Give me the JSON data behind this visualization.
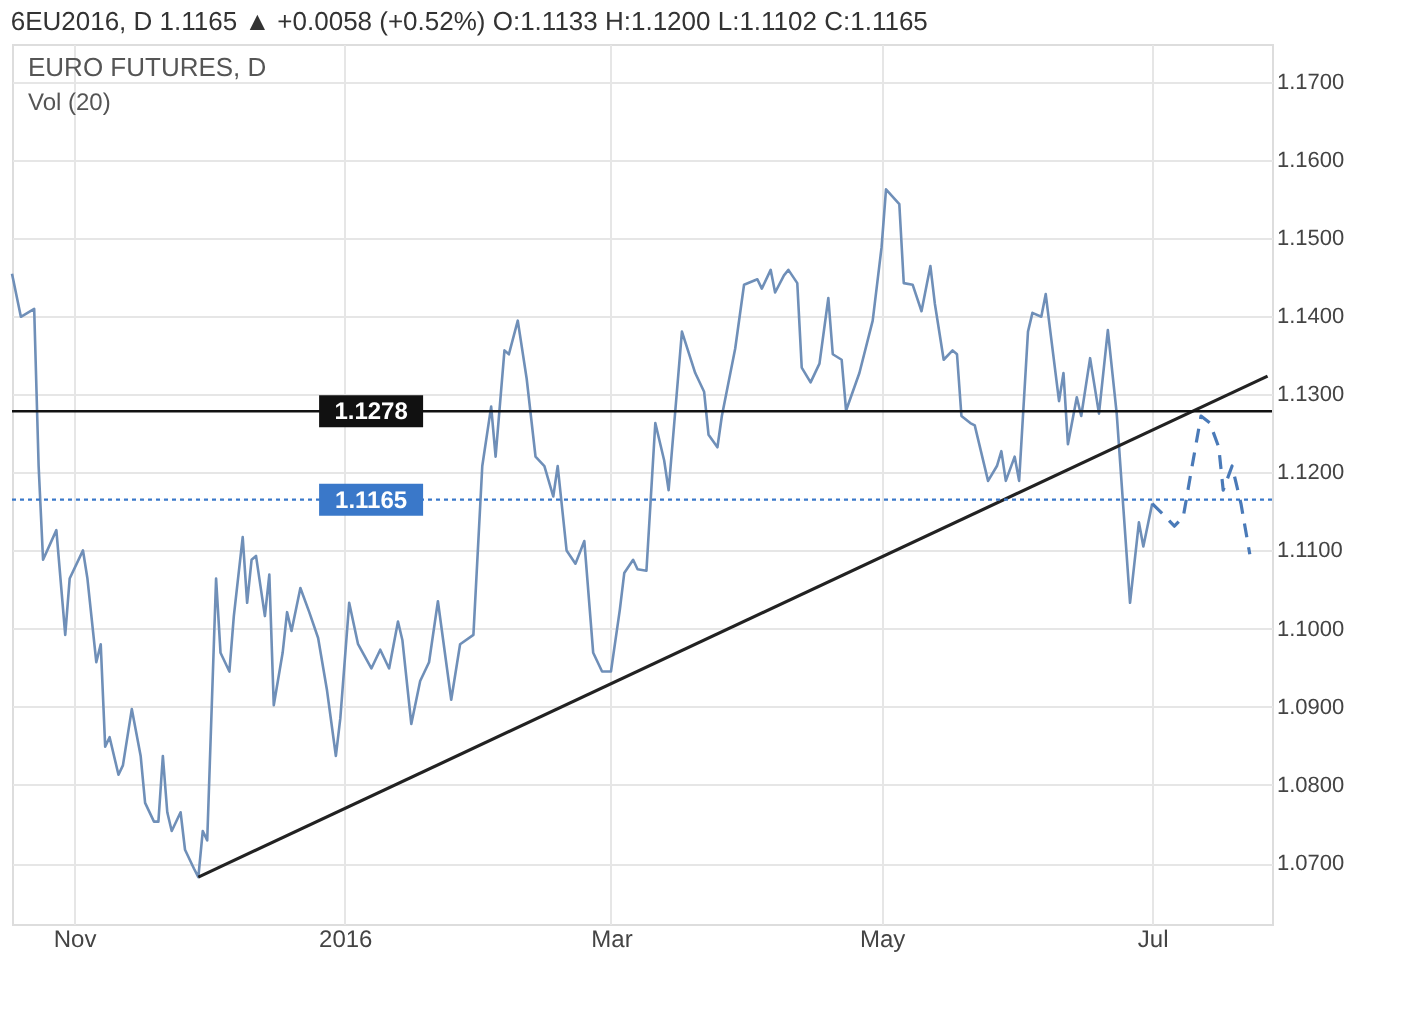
{
  "chart_data": {
    "type": "line",
    "title": "6EU2016, D  1.1165 ▲ +0.0058 (+0.52%)  O:1.1133  H:1.1200  L:1.1102  C:1.1165",
    "subtitle": "EURO FUTURES, D",
    "annotations": [
      "Vol (20)"
    ],
    "xlim": [
      "2015-10-18",
      "2016-07-28"
    ],
    "xticks": [
      {
        "value": "2015-11-01",
        "label": "Nov"
      },
      {
        "value": "2016-01-01",
        "label": "2016"
      },
      {
        "value": "2016-03-01",
        "label": "Mar"
      },
      {
        "value": "2016-05-01",
        "label": "May"
      },
      {
        "value": "2016-07-01",
        "label": "Jul"
      }
    ],
    "ylim": [
      1.0622,
      1.1748
    ],
    "yticks": [
      {
        "value": 1.07,
        "label": "1.0700"
      },
      {
        "value": 1.08,
        "label": "1.0800"
      },
      {
        "value": 1.09,
        "label": "1.0900"
      },
      {
        "value": 1.1,
        "label": "1.1000"
      },
      {
        "value": 1.11,
        "label": "1.1100"
      },
      {
        "value": 1.12,
        "label": "1.1200"
      },
      {
        "value": 1.13,
        "label": "1.1300"
      },
      {
        "value": 1.14,
        "label": "1.1400"
      },
      {
        "value": 1.15,
        "label": "1.1500"
      },
      {
        "value": 1.16,
        "label": "1.1600"
      },
      {
        "value": 1.17,
        "label": "1.1700"
      }
    ],
    "grid": true,
    "marker": "none",
    "series": [
      {
        "color": "#6f8fb8",
        "line_style": "solid",
        "x": [
          "2015-10-18",
          "2015-10-20",
          "2015-10-23",
          "2015-10-24",
          "2015-10-25",
          "2015-10-28",
          "2015-10-30",
          "2015-10-31",
          "2015-11-03",
          "2015-11-04",
          "2015-11-06",
          "2015-11-07",
          "2015-11-08",
          "2015-11-09",
          "2015-11-11",
          "2015-11-12",
          "2015-11-14",
          "2015-11-16",
          "2015-11-17",
          "2015-11-19",
          "2015-11-20",
          "2015-11-21",
          "2015-11-22",
          "2015-11-23",
          "2015-11-25",
          "2015-11-26",
          "2015-11-28",
          "2015-11-29",
          "2015-11-30",
          "2015-12-01",
          "2015-12-03",
          "2015-12-04",
          "2015-12-06",
          "2015-12-07",
          "2015-12-09",
          "2015-12-10",
          "2015-12-11",
          "2015-12-12",
          "2015-12-14",
          "2015-12-15",
          "2015-12-16",
          "2015-12-18",
          "2015-12-19",
          "2015-12-20",
          "2015-12-22",
          "2015-12-24",
          "2015-12-26",
          "2015-12-28",
          "2015-12-30",
          "2015-12-31",
          "2016-01-02",
          "2016-01-04",
          "2016-01-07",
          "2016-01-09",
          "2016-01-11",
          "2016-01-13",
          "2016-01-14",
          "2016-01-16",
          "2016-01-18",
          "2016-01-20",
          "2016-01-22",
          "2016-01-25",
          "2016-01-27",
          "2016-01-30",
          "2016-02-01",
          "2016-02-03",
          "2016-02-04",
          "2016-02-06",
          "2016-02-07",
          "2016-02-09",
          "2016-02-11",
          "2016-02-13",
          "2016-02-15",
          "2016-02-17",
          "2016-02-18",
          "2016-02-20",
          "2016-02-22",
          "2016-02-24",
          "2016-02-26",
          "2016-02-28",
          "2016-03-01",
          "2016-03-03",
          "2016-03-04",
          "2016-03-06",
          "2016-03-07",
          "2016-03-09",
          "2016-03-11",
          "2016-03-13",
          "2016-03-14",
          "2016-03-17",
          "2016-03-20",
          "2016-03-22",
          "2016-03-23",
          "2016-03-25",
          "2016-03-26",
          "2016-03-29",
          "2016-03-31",
          "2016-04-03",
          "2016-04-04",
          "2016-04-06",
          "2016-04-07",
          "2016-04-09",
          "2016-04-10",
          "2016-04-12",
          "2016-04-13",
          "2016-04-15",
          "2016-04-17",
          "2016-04-19",
          "2016-04-20",
          "2016-04-22",
          "2016-04-23",
          "2016-04-26",
          "2016-04-29",
          "2016-05-01",
          "2016-05-02",
          "2016-05-05",
          "2016-05-06",
          "2016-05-08",
          "2016-05-10",
          "2016-05-12",
          "2016-05-13",
          "2016-05-15",
          "2016-05-17",
          "2016-05-18",
          "2016-05-19",
          "2016-05-21",
          "2016-05-22",
          "2016-05-25",
          "2016-05-27",
          "2016-05-28",
          "2016-05-29",
          "2016-05-31",
          "2016-06-01",
          "2016-06-03",
          "2016-06-04",
          "2016-06-06",
          "2016-06-07",
          "2016-06-08",
          "2016-06-10",
          "2016-06-11",
          "2016-06-12",
          "2016-06-14",
          "2016-06-15",
          "2016-06-17",
          "2016-06-19",
          "2016-06-21",
          "2016-06-23",
          "2016-06-26",
          "2016-06-28",
          "2016-06-29",
          "2016-07-01"
        ],
        "values": [
          1.1454,
          1.1399,
          1.1409,
          1.1208,
          1.1088,
          1.1126,
          1.0992,
          1.1064,
          1.11,
          1.1064,
          1.0957,
          1.098,
          1.0849,
          1.0861,
          1.0813,
          1.0825,
          1.0897,
          1.0837,
          1.0777,
          1.0753,
          1.0753,
          1.0837,
          1.0765,
          1.0741,
          1.0765,
          1.0717,
          1.0693,
          1.0682,
          1.0741,
          1.0729,
          1.1064,
          1.0969,
          1.0945,
          1.1016,
          1.1117,
          1.1033,
          1.1088,
          1.1093,
          1.1016,
          1.1069,
          1.0902,
          1.0969,
          1.1021,
          1.0997,
          1.1052,
          1.1021,
          1.0988,
          1.0921,
          1.0837,
          1.0885,
          1.1033,
          1.098,
          1.0949,
          1.0973,
          1.0949,
          1.1009,
          1.0985,
          1.0878,
          1.0933,
          1.0957,
          1.1035,
          1.0909,
          1.098,
          1.0992,
          1.1208,
          1.1284,
          1.122,
          1.1356,
          1.1351,
          1.1394,
          1.132,
          1.122,
          1.1208,
          1.1169,
          1.1208,
          1.11,
          1.1083,
          1.1112,
          1.0969,
          1.0945,
          1.0945,
          1.1024,
          1.1071,
          1.1088,
          1.1076,
          1.1074,
          1.1263,
          1.1215,
          1.1177,
          1.138,
          1.1327,
          1.1303,
          1.1248,
          1.1232,
          1.1272,
          1.1358,
          1.144,
          1.1447,
          1.1435,
          1.1459,
          1.143,
          1.1452,
          1.1459,
          1.1442,
          1.1334,
          1.1315,
          1.1339,
          1.1423,
          1.1351,
          1.1344,
          1.1279,
          1.1327,
          1.1394,
          1.1488,
          1.1562,
          1.1543,
          1.1442,
          1.144,
          1.1406,
          1.1464,
          1.1416,
          1.1344,
          1.1356,
          1.1351,
          1.1272,
          1.1263,
          1.126,
          1.1189,
          1.1208,
          1.1227,
          1.1189,
          1.122,
          1.1189,
          1.138,
          1.1404,
          1.1399,
          1.1428,
          1.1382,
          1.1291,
          1.1327,
          1.1236,
          1.1296,
          1.1272,
          1.1346,
          1.1275,
          1.1382,
          1.1275,
          1.1033,
          1.1136,
          1.1105,
          1.116
        ]
      },
      {
        "color": "#4a7ab8",
        "line_style": "dashed",
        "x": [
          "2016-07-01",
          "2016-07-04",
          "2016-07-06",
          "2016-07-08",
          "2016-07-10",
          "2016-07-12",
          "2016-07-14",
          "2016-07-16",
          "2016-07-17",
          "2016-07-19",
          "2016-07-21",
          "2016-07-23"
        ],
        "values": [
          1.116,
          1.1143,
          1.1131,
          1.1143,
          1.1208,
          1.1272,
          1.1263,
          1.1232,
          1.1177,
          1.1208,
          1.116,
          1.1095
        ]
      },
      {
        "color": "#222222",
        "line_style": "solid",
        "x": [
          "2015-11-29",
          "2016-07-27"
        ],
        "values": [
          1.0682,
          1.1323
        ]
      }
    ],
    "ref_lines": [
      {
        "axis": "y",
        "value": 1.1278,
        "label": "1.1278",
        "color": "#111111",
        "line_style": "solid"
      },
      {
        "axis": "y",
        "value": 1.1165,
        "label": "1.1165",
        "color": "#3a78c9",
        "line_style": "dotted"
      }
    ]
  }
}
